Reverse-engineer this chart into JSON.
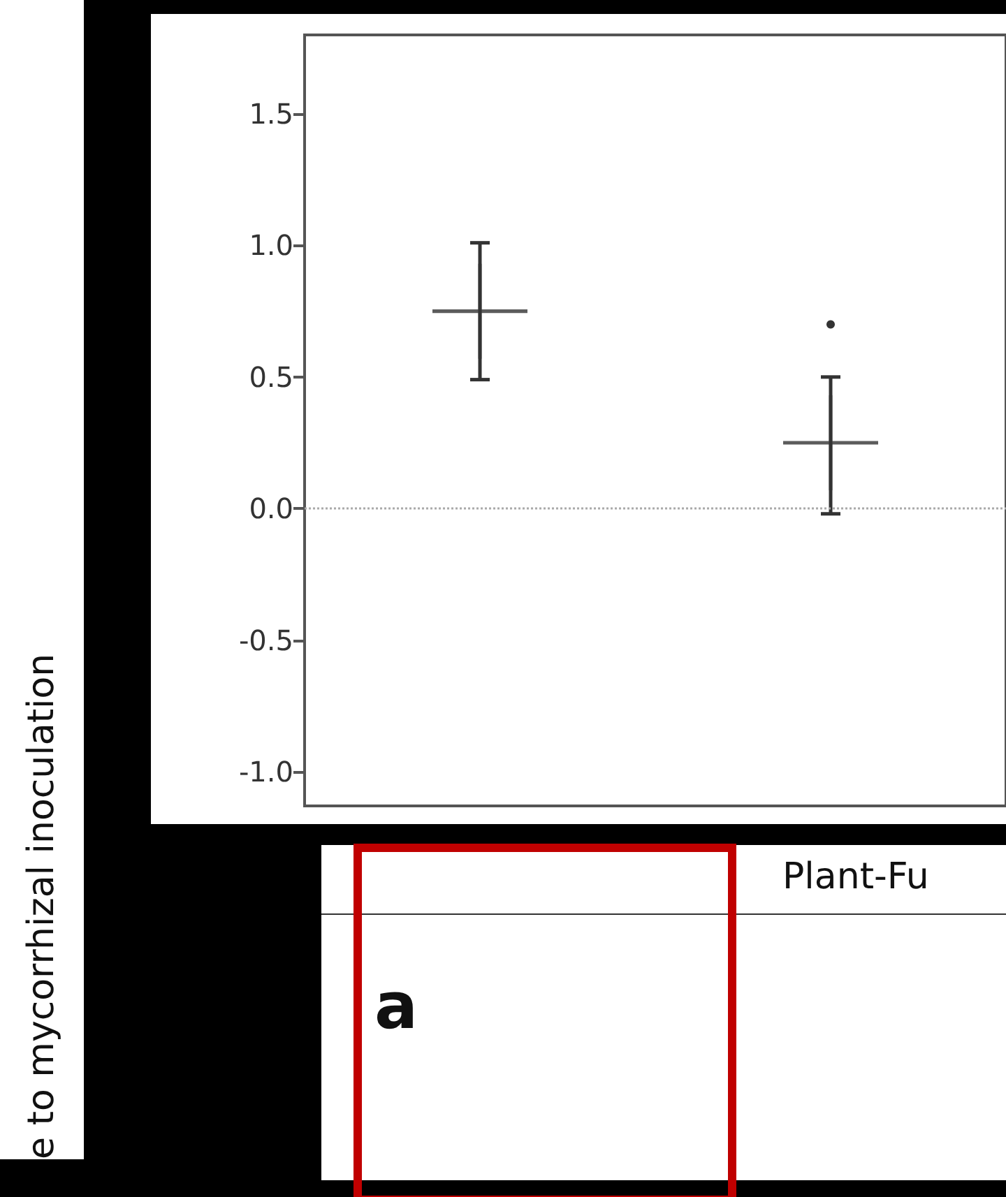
{
  "chart_data": {
    "type": "scatter",
    "ylabel": "e to mycorrhizal inoculation",
    "categories": [
      null,
      null
    ],
    "series": [
      {
        "color": "#333333",
        "marker": "cross",
        "values": [
          0.75,
          0.25
        ],
        "errors": [
          [
            0.49,
            1.01
          ],
          [
            -0.02,
            0.5
          ]
        ]
      },
      {
        "color": "#000000",
        "values": [
          null,
          0.7
        ],
        "marker": "circle"
      }
    ],
    "ylim": [
      -1.13,
      1.8
    ],
    "yticks": [
      {
        "value": -1,
        "label": "-1.0"
      },
      {
        "value": -0.5,
        "label": "-0.5"
      },
      {
        "value": 0,
        "label": "0.0"
      },
      {
        "value": 0.5,
        "label": "0.5"
      },
      {
        "value": 1,
        "label": "1.0"
      },
      {
        "value": 1.5,
        "label": "1.5"
      }
    ],
    "ref_lines": [
      {
        "axis": "y",
        "value": 0,
        "color": "#aaaaaa",
        "line_style": "dotted"
      }
    ],
    "grid": false,
    "annotations": [
      "Plant-Fu",
      "a"
    ]
  }
}
